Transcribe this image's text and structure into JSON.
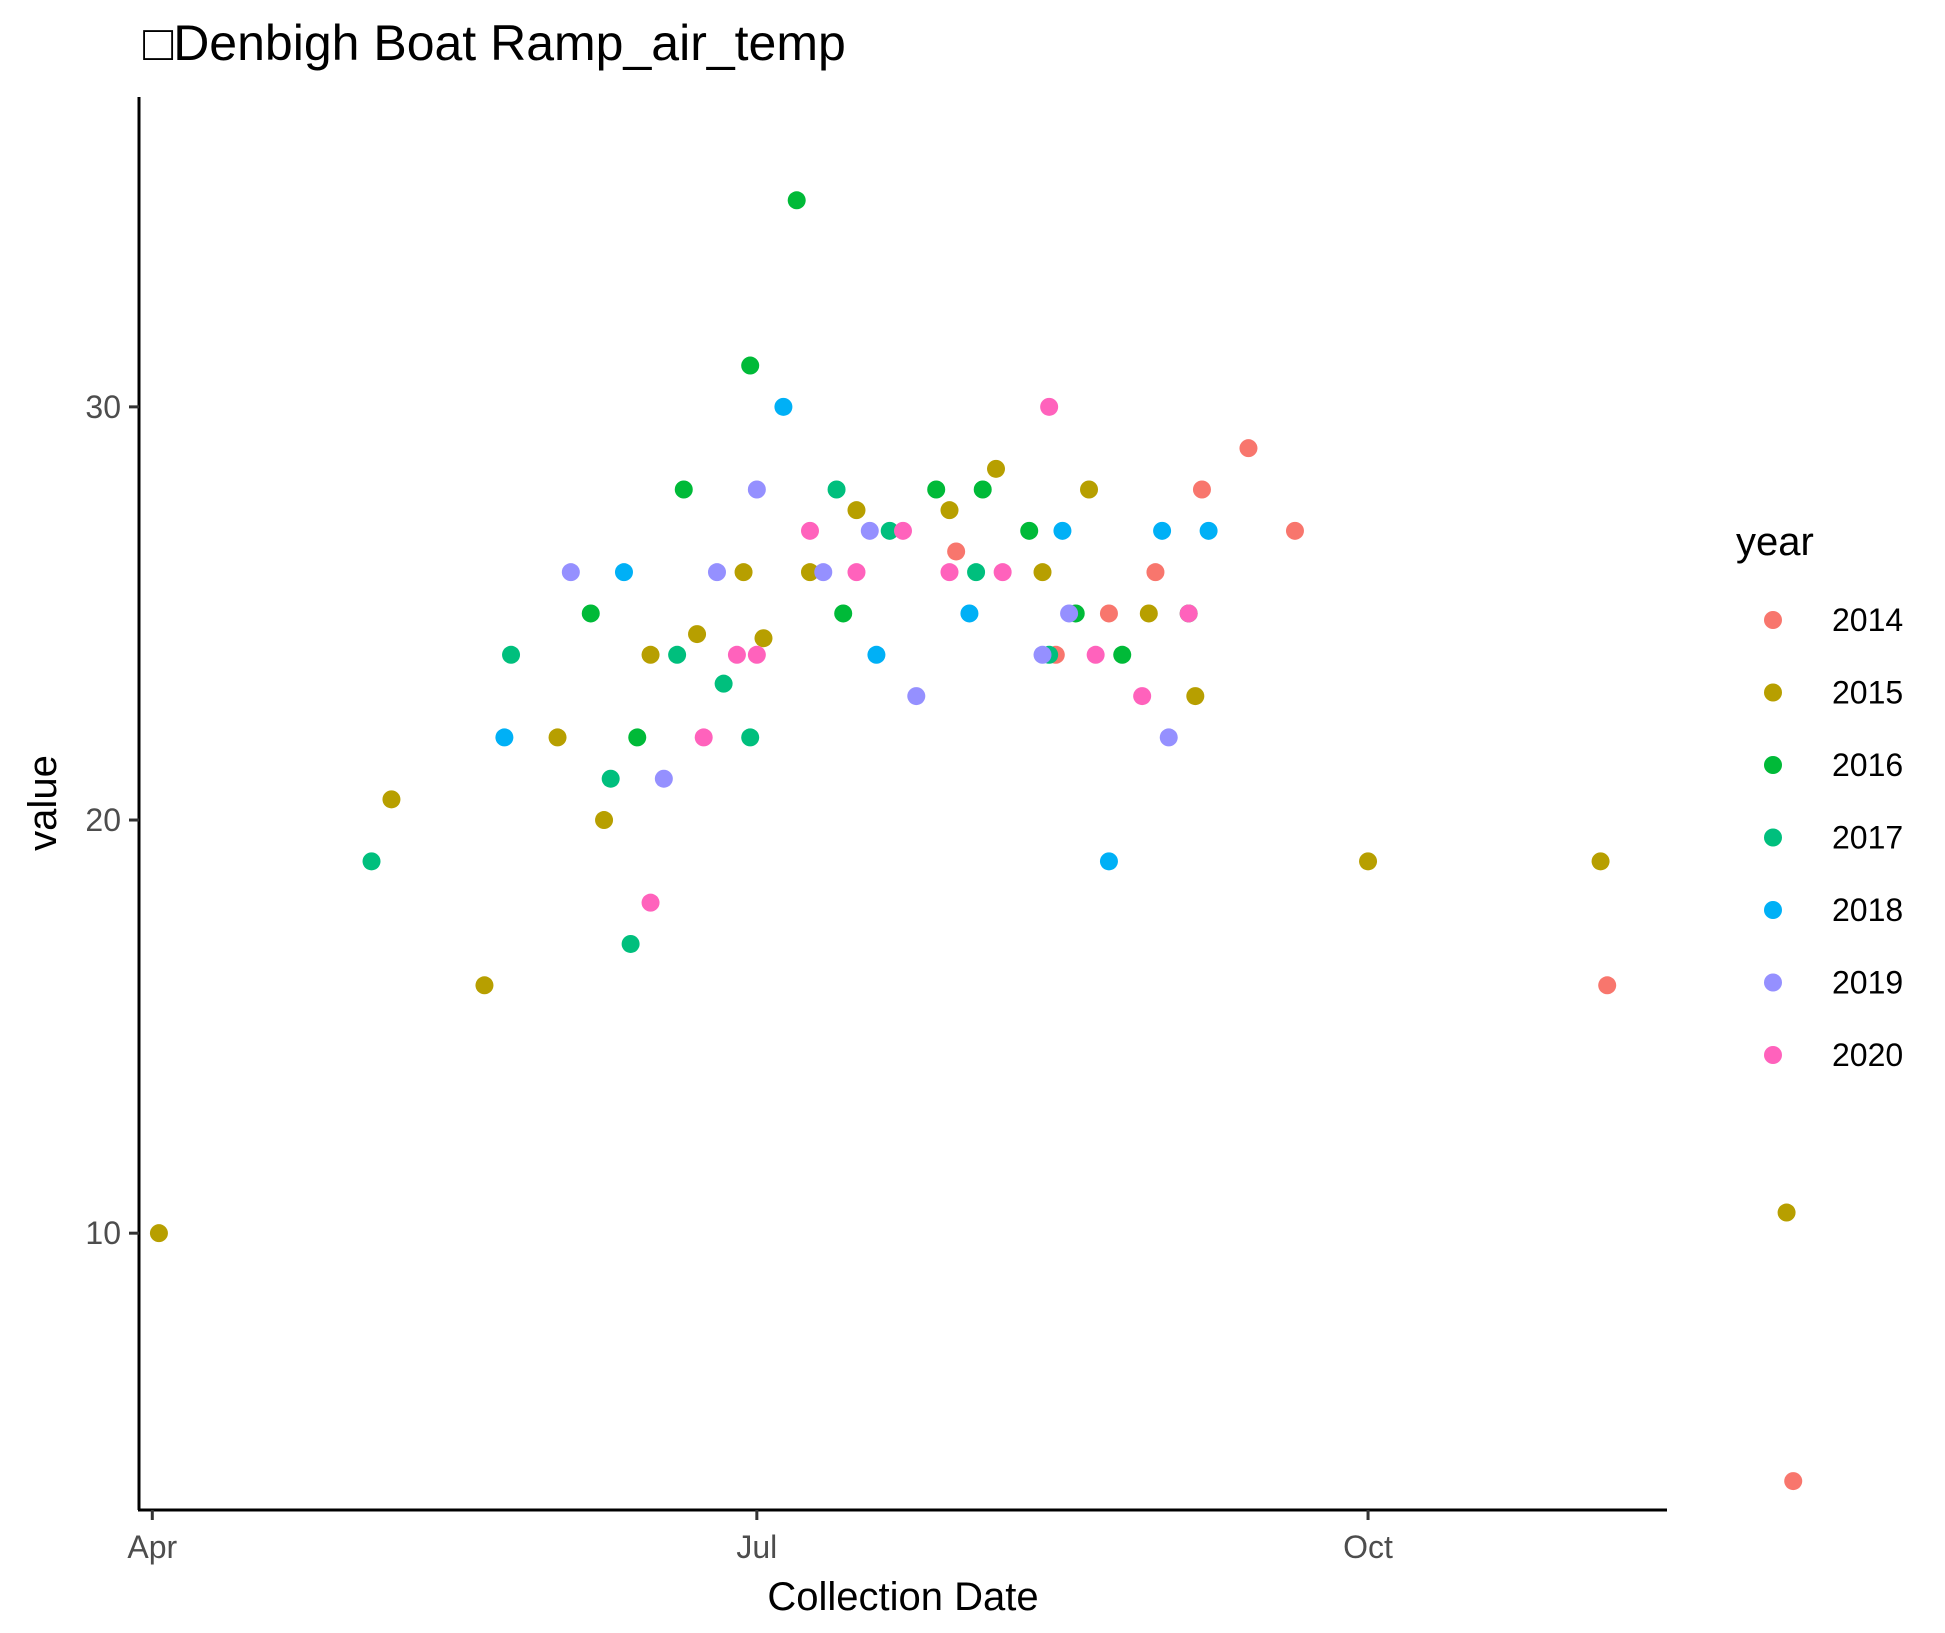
{
  "chart_data": {
    "type": "scatter",
    "title": "□Denbigh Boat Ramp_air_temp",
    "xlabel": "Collection Date",
    "ylabel": "value",
    "x_axis_type": "date-of-year",
    "xlim": [
      "03-30",
      "11-15"
    ],
    "ylim": [
      3.3,
      37.5
    ],
    "x_ticks": [
      {
        "date": "04-01",
        "label": "Apr"
      },
      {
        "date": "07-01",
        "label": "Jul"
      },
      {
        "date": "10-01",
        "label": "Oct"
      }
    ],
    "y_ticks": [
      10,
      20,
      30
    ],
    "grid": false,
    "legend": {
      "title": "year",
      "position": "right"
    },
    "series": [
      {
        "name": "2014",
        "color": "#F8766D",
        "points": [
          {
            "x": "07-31",
            "y": 26.5
          },
          {
            "x": "08-15",
            "y": 24
          },
          {
            "x": "08-23",
            "y": 25
          },
          {
            "x": "08-30",
            "y": 26
          },
          {
            "x": "09-06",
            "y": 28
          },
          {
            "x": "09-13",
            "y": 29
          },
          {
            "x": "09-20",
            "y": 27
          },
          {
            "x": "10-37",
            "y": 16
          },
          {
            "x": "10-65",
            "y": 4
          }
        ]
      },
      {
        "name": "2015",
        "color": "#B79F00",
        "points": [
          {
            "x": "04-02",
            "y": 10
          },
          {
            "x": "05-07",
            "y": 20.5
          },
          {
            "x": "05-21",
            "y": 16
          },
          {
            "x": "06-01",
            "y": 22
          },
          {
            "x": "06-08",
            "y": 20
          },
          {
            "x": "06-15",
            "y": 24
          },
          {
            "x": "06-22",
            "y": 24.5
          },
          {
            "x": "06-29",
            "y": 26
          },
          {
            "x": "07-02",
            "y": 24.4
          },
          {
            "x": "07-09",
            "y": 26
          },
          {
            "x": "07-16",
            "y": 27.5
          },
          {
            "x": "07-30",
            "y": 27.5
          },
          {
            "x": "08-06",
            "y": 28.5
          },
          {
            "x": "08-13",
            "y": 26
          },
          {
            "x": "08-20",
            "y": 28
          },
          {
            "x": "08-29",
            "y": 25
          },
          {
            "x": "09-05",
            "y": 23
          },
          {
            "x": "10-01",
            "y": 19
          },
          {
            "x": "10-36",
            "y": 19
          },
          {
            "x": "10-64",
            "y": 10.5
          }
        ]
      },
      {
        "name": "2016",
        "color": "#00BA38",
        "points": [
          {
            "x": "06-06",
            "y": 25
          },
          {
            "x": "06-13",
            "y": 22
          },
          {
            "x": "06-20",
            "y": 28
          },
          {
            "x": "06-30",
            "y": 31
          },
          {
            "x": "07-07",
            "y": 35
          },
          {
            "x": "07-14",
            "y": 25
          },
          {
            "x": "07-28",
            "y": 28
          },
          {
            "x": "08-04",
            "y": 28
          },
          {
            "x": "08-11",
            "y": 27
          },
          {
            "x": "08-18",
            "y": 25
          },
          {
            "x": "08-25",
            "y": 24
          },
          {
            "x": "09-04",
            "y": 25
          }
        ]
      },
      {
        "name": "2017",
        "color": "#00BF7D",
        "points": [
          {
            "x": "05-04",
            "y": 19
          },
          {
            "x": "05-25",
            "y": 24
          },
          {
            "x": "06-09",
            "y": 21
          },
          {
            "x": "06-12",
            "y": 17
          },
          {
            "x": "06-19",
            "y": 24
          },
          {
            "x": "06-26",
            "y": 23.3
          },
          {
            "x": "06-30",
            "y": 22
          },
          {
            "x": "07-13",
            "y": 28
          },
          {
            "x": "07-21",
            "y": 27
          },
          {
            "x": "08-03",
            "y": 26
          },
          {
            "x": "08-14",
            "y": 24
          }
        ]
      },
      {
        "name": "2018",
        "color": "#00B0F6",
        "points": [
          {
            "x": "05-24",
            "y": 22
          },
          {
            "x": "06-11",
            "y": 26
          },
          {
            "x": "07-05",
            "y": 30
          },
          {
            "x": "07-19",
            "y": 24
          },
          {
            "x": "08-02",
            "y": 25
          },
          {
            "x": "08-16",
            "y": 27
          },
          {
            "x": "08-23",
            "y": 19
          },
          {
            "x": "08-31",
            "y": 27
          },
          {
            "x": "09-07",
            "y": 27
          }
        ]
      },
      {
        "name": "2019",
        "color": "#9590FF",
        "points": [
          {
            "x": "06-03",
            "y": 26
          },
          {
            "x": "06-17",
            "y": 21
          },
          {
            "x": "06-25",
            "y": 26
          },
          {
            "x": "07-01",
            "y": 28
          },
          {
            "x": "07-11",
            "y": 26
          },
          {
            "x": "07-18",
            "y": 27
          },
          {
            "x": "07-25",
            "y": 23
          },
          {
            "x": "08-13",
            "y": 24
          },
          {
            "x": "08-17",
            "y": 25
          },
          {
            "x": "09-01",
            "y": 22
          }
        ]
      },
      {
        "name": "2020",
        "color": "#FF62BC",
        "points": [
          {
            "x": "06-15",
            "y": 18
          },
          {
            "x": "06-23",
            "y": 22
          },
          {
            "x": "06-28",
            "y": 24
          },
          {
            "x": "07-01",
            "y": 24
          },
          {
            "x": "07-09",
            "y": 27
          },
          {
            "x": "07-16",
            "y": 26
          },
          {
            "x": "07-23",
            "y": 27
          },
          {
            "x": "07-30",
            "y": 26
          },
          {
            "x": "08-07",
            "y": 26
          },
          {
            "x": "08-14",
            "y": 30
          },
          {
            "x": "08-21",
            "y": 24
          },
          {
            "x": "08-28",
            "y": 23
          },
          {
            "x": "09-04",
            "y": 25
          }
        ]
      }
    ]
  }
}
